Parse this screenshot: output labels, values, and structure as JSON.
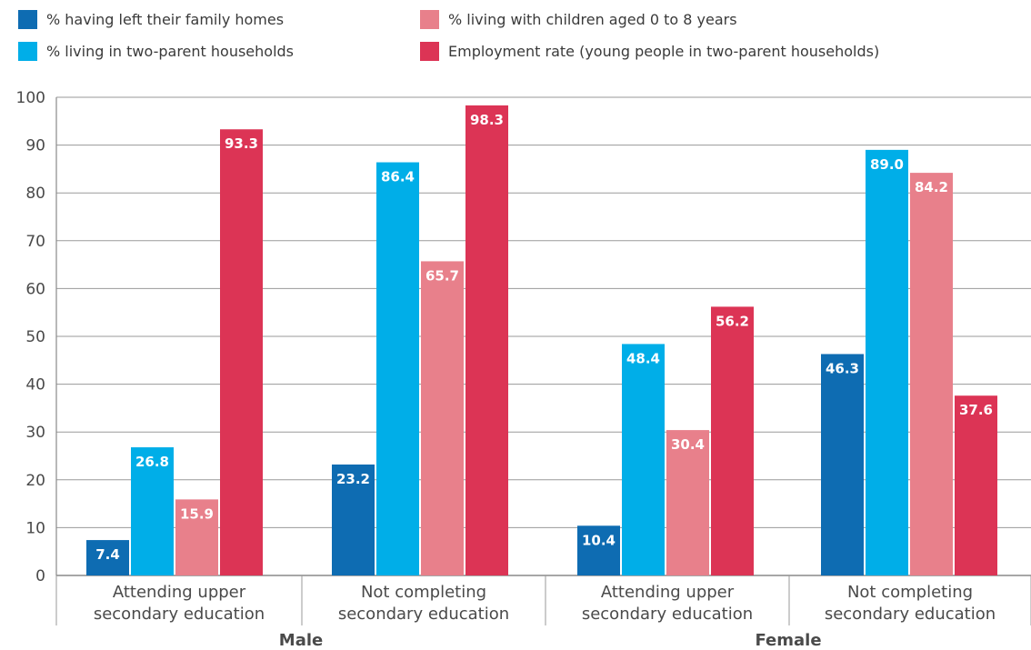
{
  "chart_data": {
    "type": "bar",
    "title": "",
    "xlabel": "",
    "ylabel": "",
    "ylim": [
      0,
      100
    ],
    "yticks": [
      0,
      10,
      20,
      30,
      40,
      50,
      60,
      70,
      80,
      90,
      100
    ],
    "grid": true,
    "legend_position": "top",
    "categories": [
      {
        "line1": "Attending upper",
        "line2": "secondary education",
        "group": "Male"
      },
      {
        "line1": "Not completing",
        "line2": "secondary education",
        "group": "Male"
      },
      {
        "line1": "Attending upper",
        "line2": "secondary education",
        "group": "Female"
      },
      {
        "line1": "Not completing",
        "line2": "secondary education",
        "group": "Female"
      }
    ],
    "groups": [
      "Male",
      "Female"
    ],
    "series": [
      {
        "name": "% having left their family homes",
        "color": "#0e6cb2",
        "values": [
          7.4,
          23.2,
          10.4,
          46.3
        ]
      },
      {
        "name": "% living in two-parent households",
        "color": "#00aee8",
        "values": [
          26.8,
          86.4,
          48.4,
          89.0
        ]
      },
      {
        "name": "% living with children aged 0 to 8 years",
        "color": "#e8808b",
        "values": [
          15.9,
          65.7,
          30.4,
          84.2
        ]
      },
      {
        "name": "Employment rate (young people in two-parent households)",
        "color": "#dc3455",
        "values": [
          93.3,
          98.3,
          56.2,
          37.6
        ]
      }
    ]
  }
}
